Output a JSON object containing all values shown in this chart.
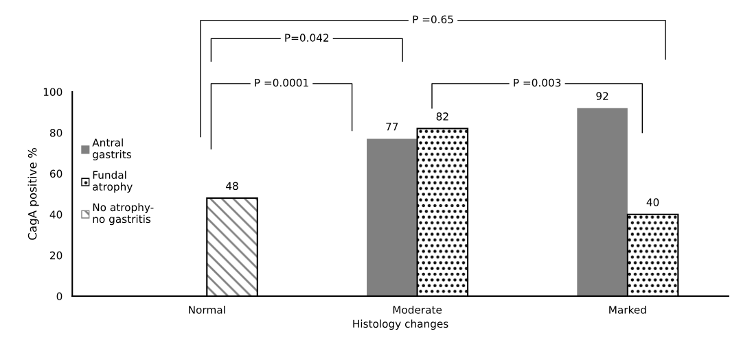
{
  "chart_data": {
    "type": "bar",
    "xlabel": "Histology changes",
    "ylabel": "CagA positive %",
    "categories": [
      "Normal",
      "Moderate",
      "Marked"
    ],
    "series": [
      {
        "name": "Antral\ngastrits",
        "color": "#808080",
        "values": [
          null,
          77,
          92
        ]
      },
      {
        "name": "Fundal\natrophy",
        "color": "#ffffff",
        "values": [
          null,
          82,
          40
        ]
      },
      {
        "name": "No atrophy-\nno gastritis",
        "color": "#808080",
        "values": [
          48,
          null,
          null
        ]
      }
    ],
    "ylim": [
      0,
      100
    ],
    "yticks": [
      0,
      20,
      40,
      60,
      80,
      100
    ],
    "data_labels": true,
    "legend": "left",
    "grid": false,
    "annotations": [
      "P =0.0001",
      "P=0.042",
      "P =0.65",
      "P =0.003"
    ]
  }
}
